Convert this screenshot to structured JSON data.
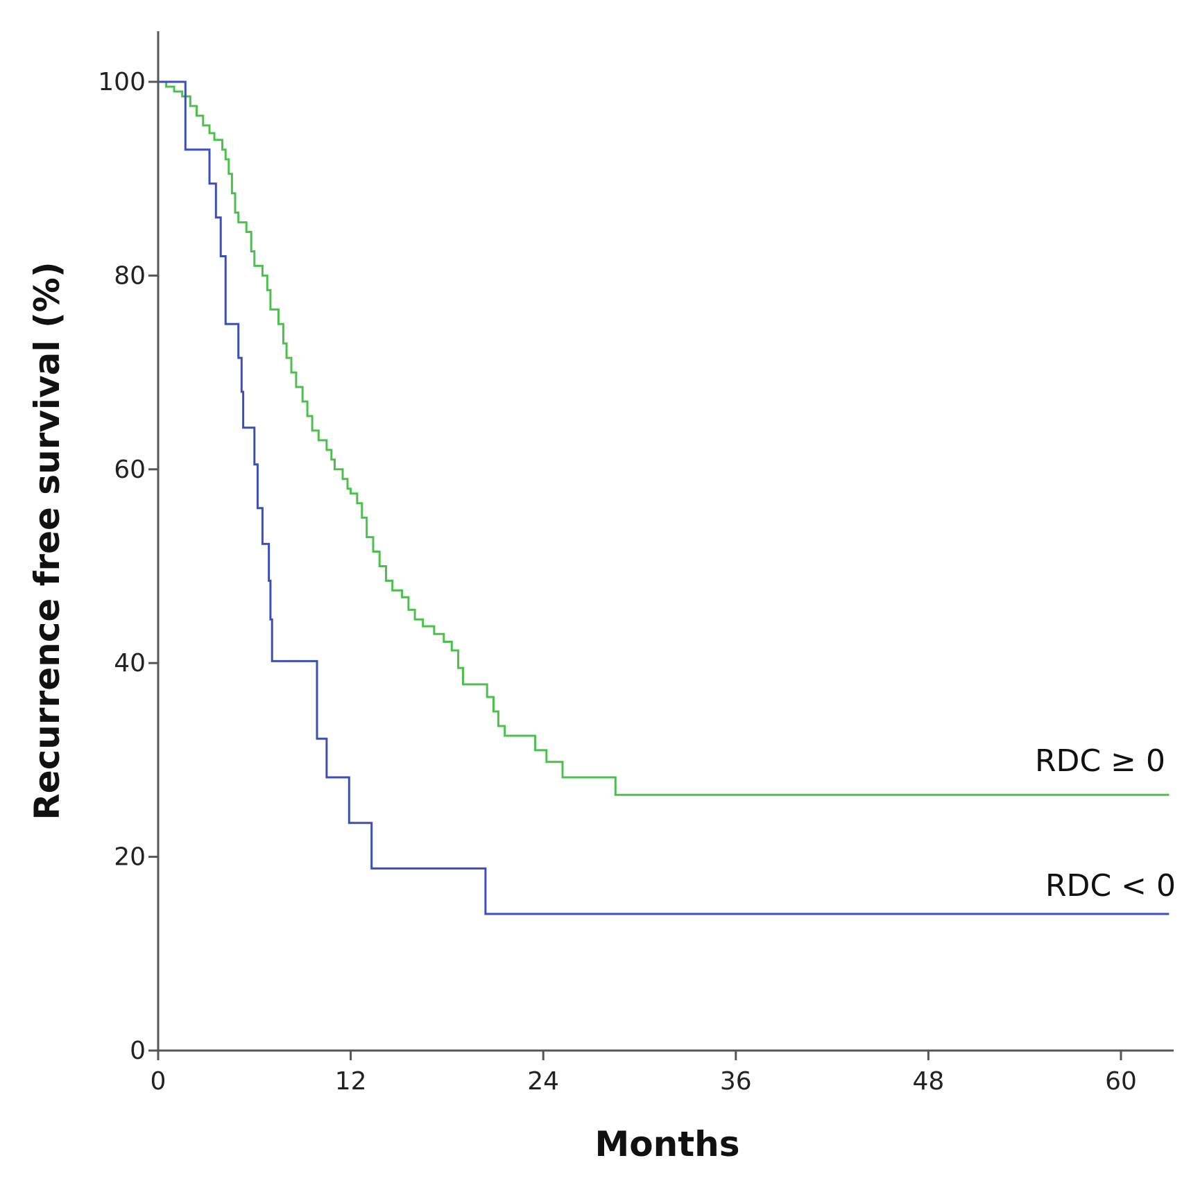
{
  "chart_data": {
    "type": "line",
    "step": true,
    "title": "",
    "xlabel": "Months",
    "ylabel": "Recurrence free survival (%)",
    "xlim": [
      0,
      63
    ],
    "ylim": [
      0,
      105
    ],
    "xticks": [
      0,
      12,
      24,
      36,
      48,
      60
    ],
    "yticks": [
      0,
      20,
      40,
      60,
      80,
      100
    ],
    "series": [
      {
        "name": "RDC ≥ 0",
        "color": "#4cc04c",
        "points": [
          [
            0,
            100
          ],
          [
            0.5,
            99.5
          ],
          [
            1,
            99
          ],
          [
            1.5,
            98.5
          ],
          [
            2,
            97.5
          ],
          [
            2.4,
            96.5
          ],
          [
            2.8,
            95.5
          ],
          [
            3.2,
            94.7
          ],
          [
            3.5,
            94
          ],
          [
            4,
            93
          ],
          [
            4.2,
            92
          ],
          [
            4.4,
            90.5
          ],
          [
            4.6,
            88.5
          ],
          [
            4.8,
            86.5
          ],
          [
            5,
            85.5
          ],
          [
            5.5,
            84.5
          ],
          [
            5.8,
            82.5
          ],
          [
            6,
            81
          ],
          [
            6.5,
            80
          ],
          [
            6.8,
            78.5
          ],
          [
            7,
            76.5
          ],
          [
            7.5,
            75
          ],
          [
            7.8,
            73
          ],
          [
            8,
            71.5
          ],
          [
            8.3,
            70
          ],
          [
            8.6,
            68.5
          ],
          [
            9,
            67
          ],
          [
            9.3,
            65.5
          ],
          [
            9.6,
            64
          ],
          [
            10,
            63
          ],
          [
            10.5,
            62
          ],
          [
            10.8,
            61
          ],
          [
            11,
            60
          ],
          [
            11.5,
            59
          ],
          [
            11.8,
            58
          ],
          [
            12,
            57.5
          ],
          [
            12.4,
            56.5
          ],
          [
            12.7,
            55
          ],
          [
            13,
            53
          ],
          [
            13.4,
            51.5
          ],
          [
            13.8,
            50
          ],
          [
            14.2,
            48.5
          ],
          [
            14.6,
            47.5
          ],
          [
            15.2,
            46.8
          ],
          [
            15.6,
            45.5
          ],
          [
            16,
            44.5
          ],
          [
            16.5,
            43.8
          ],
          [
            17.2,
            43
          ],
          [
            17.8,
            42.2
          ],
          [
            18.3,
            41.3
          ],
          [
            18.7,
            39.5
          ],
          [
            19,
            37.8
          ],
          [
            20.5,
            36.5
          ],
          [
            20.9,
            35
          ],
          [
            21.2,
            33.5
          ],
          [
            21.6,
            32.5
          ],
          [
            23.5,
            31
          ],
          [
            24.2,
            29.8
          ],
          [
            25.2,
            28.2
          ],
          [
            28.5,
            26.4
          ],
          [
            63,
            26.4
          ]
        ]
      },
      {
        "name": "RDC < 0",
        "color": "#3c4fb8",
        "points": [
          [
            0,
            100
          ],
          [
            1.7,
            93
          ],
          [
            3.2,
            89.5
          ],
          [
            3.6,
            86
          ],
          [
            3.9,
            82
          ],
          [
            4.2,
            75
          ],
          [
            5,
            71.5
          ],
          [
            5.2,
            68
          ],
          [
            5.3,
            64.3
          ],
          [
            6,
            60.5
          ],
          [
            6.2,
            56
          ],
          [
            6.5,
            52.3
          ],
          [
            6.9,
            48.5
          ],
          [
            7,
            44.5
          ],
          [
            7.1,
            40.2
          ],
          [
            9.9,
            32.2
          ],
          [
            10.5,
            28.2
          ],
          [
            11.9,
            23.5
          ],
          [
            13.3,
            18.8
          ],
          [
            20.4,
            14.1
          ],
          [
            63,
            14.1
          ]
        ]
      }
    ],
    "annotations": [
      {
        "text": "RDC ≥ 0",
        "series": "RDC ≥ 0"
      },
      {
        "text": "RDC < 0",
        "series": "RDC < 0"
      }
    ]
  }
}
